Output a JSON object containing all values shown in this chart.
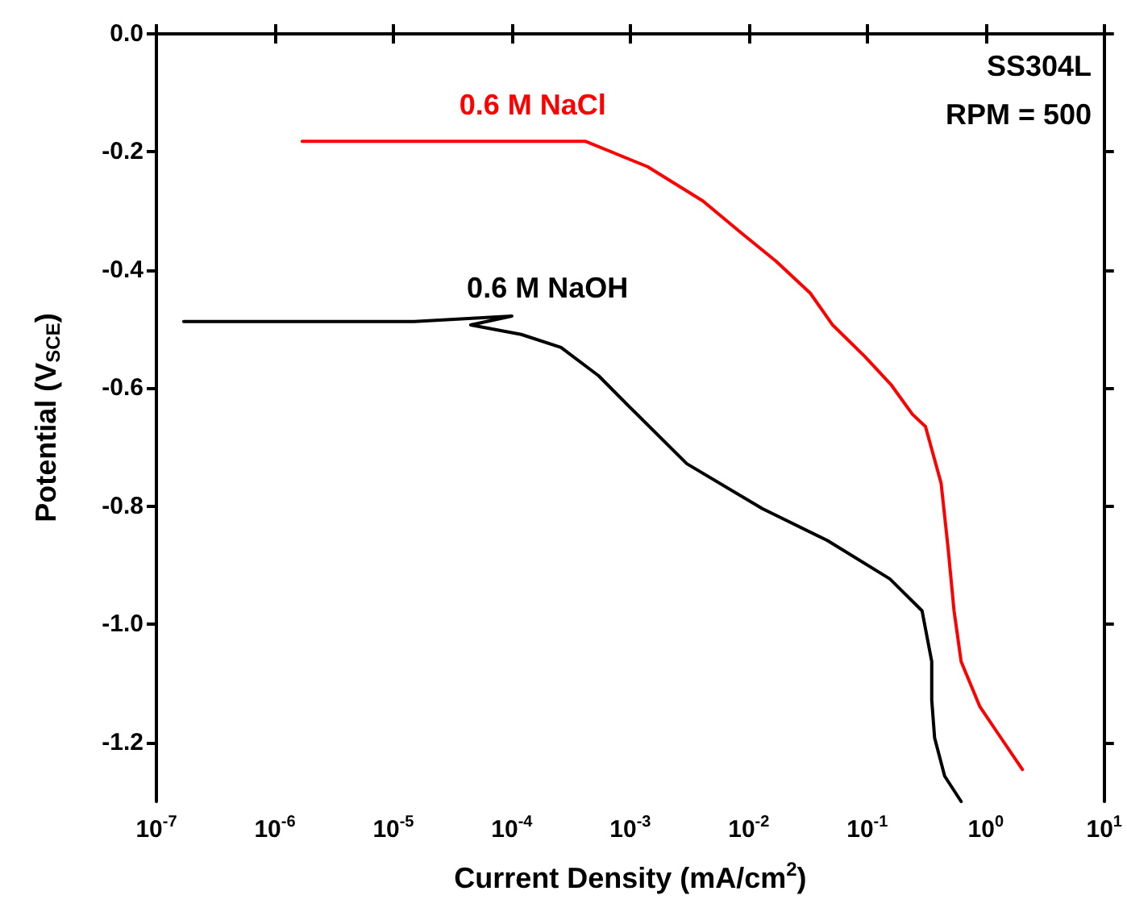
{
  "chart_data": {
    "type": "line",
    "xlabel": "Current Density (mA/cm$^{2}$)",
    "ylabel": "Potential (V$_{SCE}$)",
    "log": "x",
    "marker": "none",
    "grid": false,
    "legend": false,
    "xlim": [
      1e-07,
      10
    ],
    "ylim": [
      -1.3,
      0
    ],
    "xticks": [
      {
        "value": 1e-07,
        "label": "10$^{-7}$"
      },
      {
        "value": 1e-06,
        "label": "10$^{-6}$"
      },
      {
        "value": 1e-05,
        "label": "10$^{-5}$"
      },
      {
        "value": 0.0001,
        "label": "10$^{-4}$"
      },
      {
        "value": 0.001,
        "label": "10$^{-3}$"
      },
      {
        "value": 0.01,
        "label": "10$^{-2}$"
      },
      {
        "value": 0.1,
        "label": "10$^{-1}$"
      },
      {
        "value": 1,
        "label": "10$^{0}$"
      },
      {
        "value": 10,
        "label": "10$^{1}$"
      }
    ],
    "yticks": [
      {
        "value": 0,
        "label": "0.0"
      },
      {
        "value": -0.2,
        "label": "-0.2"
      },
      {
        "value": -0.4,
        "label": "-0.4"
      },
      {
        "value": -0.6,
        "label": "-0.6"
      },
      {
        "value": -0.8,
        "label": "-0.8"
      },
      {
        "value": -1.0,
        "label": "-1.0"
      },
      {
        "value": -1.2,
        "label": "-1.2"
      }
    ],
    "annotations": [
      "SS304L",
      "RPM = 500"
    ],
    "series": [
      {
        "name": "0.6 M NaCl",
        "color": "#ff0000",
        "x": [
          1.7e-06,
          0.00042,
          0.0014,
          0.0041,
          0.0085,
          0.017,
          0.033,
          0.051,
          0.095,
          0.16,
          0.24,
          0.31,
          0.42,
          0.48,
          0.54,
          0.62,
          0.89,
          1.29,
          2.04
        ],
        "values": [
          -0.182,
          -0.182,
          -0.225,
          -0.283,
          -0.336,
          -0.385,
          -0.439,
          -0.493,
          -0.546,
          -0.595,
          -0.644,
          -0.665,
          -0.761,
          -0.869,
          -0.977,
          -1.063,
          -1.139,
          -1.187,
          -1.246
        ]
      },
      {
        "name": "0.6 M NaOH",
        "color": "#000000",
        "x": [
          1.7e-07,
          1.5e-05,
          0.0001,
          4.5e-05,
          0.00012,
          0.00026,
          0.00054,
          0.001,
          0.003,
          0.013,
          0.046,
          0.155,
          0.29,
          0.35,
          0.35,
          0.37,
          0.45,
          0.62
        ],
        "values": [
          -0.487,
          -0.487,
          -0.478,
          -0.493,
          -0.509,
          -0.531,
          -0.579,
          -0.633,
          -0.728,
          -0.804,
          -0.858,
          -0.923,
          -0.977,
          -1.063,
          -1.128,
          -1.192,
          -1.257,
          -1.3
        ]
      }
    ]
  }
}
